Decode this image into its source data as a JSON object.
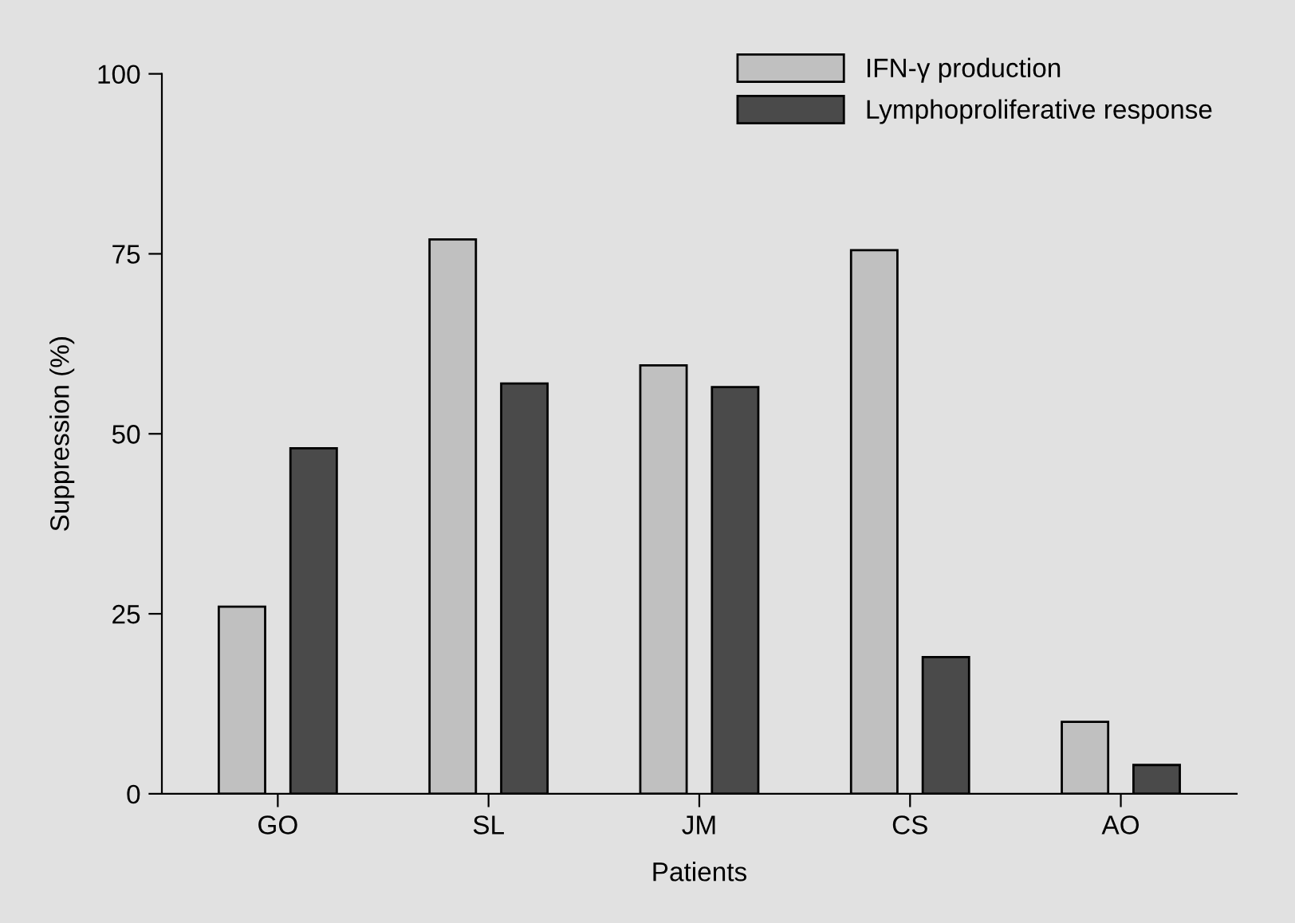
{
  "chart_data": {
    "type": "bar",
    "xlabel": "Patients",
    "ylabel": "Suppression (%)",
    "categories": [
      "GO",
      "SL",
      "JM",
      "CS",
      "AO"
    ],
    "series": [
      {
        "name": "IFN-γ production",
        "color": "#c0c0c0",
        "values": [
          26,
          77,
          59.5,
          75.5,
          10
        ]
      },
      {
        "name": "Lymphoproliferative response",
        "color": "#4a4a4a",
        "values": [
          48,
          57,
          56.5,
          19,
          4
        ]
      }
    ],
    "ylim": [
      0,
      100
    ],
    "yticks": [
      0,
      25,
      50,
      75,
      100
    ],
    "grid": false,
    "legend": "top right"
  }
}
